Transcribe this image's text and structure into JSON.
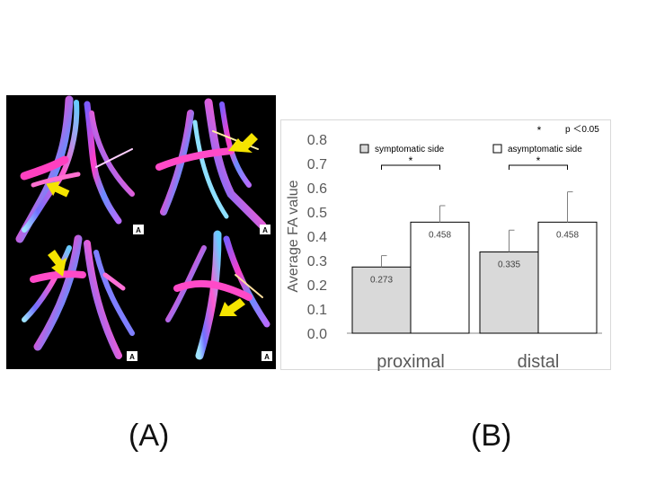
{
  "panels": {
    "a_label": "(A)",
    "b_label": "(B)"
  },
  "tractography": {
    "quadrant_marker": "A",
    "arrow_color": "#f5e400"
  },
  "chart_data": {
    "type": "bar",
    "categories": [
      "proximal",
      "distal"
    ],
    "series": [
      {
        "name": "symptomatic side",
        "values": [
          0.273,
          0.335
        ],
        "errors": [
          0.047,
          0.09
        ],
        "data_labels": [
          "0.273",
          "0.335"
        ],
        "color": "#d9d9d9"
      },
      {
        "name": "asymptomatic side",
        "values": [
          0.458,
          0.458
        ],
        "errors": [
          0.068,
          0.125
        ],
        "data_labels": [
          "0.458",
          "0.458"
        ],
        "color": "#ffffff"
      }
    ],
    "ylabel": "Average FA value",
    "xlabel": "",
    "ylim": [
      0,
      0.8
    ],
    "yticks": [
      "0.0",
      "0.1",
      "0.2",
      "0.3",
      "0.4",
      "0.5",
      "0.6",
      "0.7",
      "0.8"
    ],
    "significance": [
      {
        "category": "proximal",
        "marker": "*"
      },
      {
        "category": "distal",
        "marker": "*"
      }
    ],
    "annotation": {
      "marker": "*",
      "text": "p ＜0.05"
    },
    "legend_position": "top",
    "grid": false
  }
}
